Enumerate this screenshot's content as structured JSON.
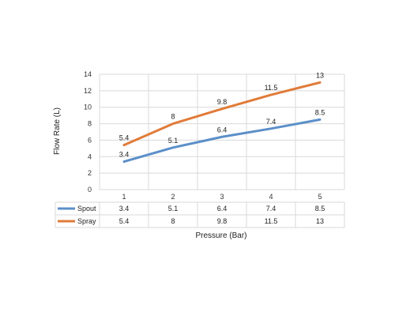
{
  "chart_data": {
    "type": "line",
    "categories": [
      "1",
      "2",
      "3",
      "4",
      "5"
    ],
    "series": [
      {
        "name": "Spout",
        "values": [
          3.4,
          5.1,
          6.4,
          7.4,
          8.5
        ],
        "labels": [
          "3.4",
          "5.1",
          "6.4",
          "7.4",
          "8.5"
        ],
        "color": "#5b8fc9"
      },
      {
        "name": "Spray",
        "values": [
          5.4,
          8,
          9.8,
          11.5,
          13
        ],
        "labels": [
          "5.4",
          "8",
          "9.8",
          "11.5",
          "13"
        ],
        "color": "#e07b39"
      }
    ],
    "title": "",
    "xlabel": "Pressure (Bar)",
    "ylabel": "Flow Rate (L)",
    "ylim": [
      0,
      14
    ],
    "yticks": [
      0,
      2,
      4,
      6,
      8,
      10,
      12,
      14
    ],
    "grid": true,
    "legend": "data-table-rows"
  }
}
